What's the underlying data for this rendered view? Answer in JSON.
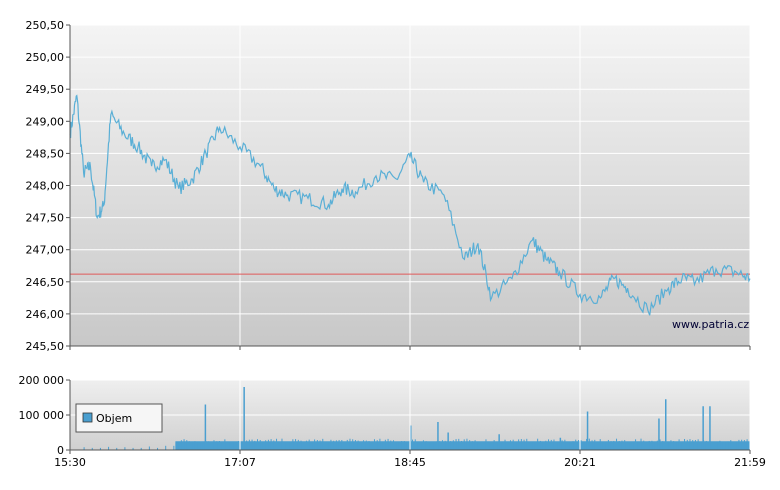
{
  "chart_data": [
    {
      "type": "line",
      "name": "price",
      "color": "#5aafd6",
      "reference_line": {
        "value": 246.62,
        "color": "#e05a5a"
      },
      "ylim": [
        245.5,
        250.5
      ],
      "y_ticks": [
        "250,50",
        "250,00",
        "249,50",
        "249,00",
        "248,50",
        "248,00",
        "247,50",
        "247,00",
        "246,50",
        "246,00",
        "245,50"
      ],
      "y_tick_values": [
        250.5,
        250.0,
        249.5,
        249.0,
        248.5,
        248.0,
        247.5,
        247.0,
        246.5,
        246.0,
        245.5
      ],
      "watermark": "www.patria.cz",
      "grid": true,
      "series": [
        {
          "x": [
            0,
            0.01,
            0.02,
            0.03,
            0.04,
            0.05,
            0.06,
            0.08,
            0.1,
            0.12,
            0.14,
            0.16,
            0.18,
            0.2,
            0.22,
            0.25,
            0.28,
            0.3,
            0.32,
            0.35,
            0.38,
            0.4,
            0.42,
            0.45,
            0.48,
            0.5,
            0.52,
            0.55,
            0.58,
            0.6,
            0.62,
            0.65,
            0.68,
            0.7,
            0.72,
            0.75,
            0.78,
            0.8,
            0.82,
            0.85,
            0.88,
            0.9,
            0.92,
            0.95,
            0.98,
            1.0
          ],
          "y": [
            248.8,
            249.4,
            248.2,
            248.3,
            247.5,
            247.7,
            249.1,
            248.8,
            248.6,
            248.3,
            248.4,
            247.95,
            248.1,
            248.5,
            248.9,
            248.6,
            248.3,
            247.95,
            247.85,
            247.8,
            247.7,
            247.95,
            247.9,
            248.15,
            248.1,
            248.45,
            248.05,
            247.85,
            246.85,
            247.1,
            246.25,
            246.55,
            247.15,
            246.85,
            246.65,
            246.3,
            246.25,
            246.55,
            246.4,
            246.05,
            246.4,
            246.55,
            246.5,
            246.7,
            246.65,
            246.55
          ]
        }
      ]
    },
    {
      "type": "bar",
      "name": "volume",
      "color": "#4a9fd0",
      "ylim": [
        0,
        200000
      ],
      "y_ticks": [
        "200 000",
        "100 000",
        "0"
      ],
      "y_tick_values": [
        200000,
        100000,
        0
      ],
      "x_ticks": [
        "15:30",
        "17:07",
        "18:45",
        "20:21",
        "21:59"
      ],
      "legend": "Objem",
      "grid": true,
      "series": [
        {
          "base_start": 0.155,
          "base_value": 25000,
          "low_values": [
            5000,
            12000,
            8000,
            15000,
            6000,
            10000,
            4000,
            9000
          ],
          "spikes": [
            {
              "x": 0.198,
              "value": 130000
            },
            {
              "x": 0.255,
              "value": 180000
            },
            {
              "x": 0.5,
              "value": 70000
            },
            {
              "x": 0.54,
              "value": 80000
            },
            {
              "x": 0.555,
              "value": 50000
            },
            {
              "x": 0.63,
              "value": 45000
            },
            {
              "x": 0.72,
              "value": 35000
            },
            {
              "x": 0.76,
              "value": 110000
            },
            {
              "x": 0.865,
              "value": 90000
            },
            {
              "x": 0.875,
              "value": 145000
            },
            {
              "x": 0.93,
              "value": 125000
            },
            {
              "x": 0.94,
              "value": 125000
            }
          ]
        }
      ]
    }
  ]
}
